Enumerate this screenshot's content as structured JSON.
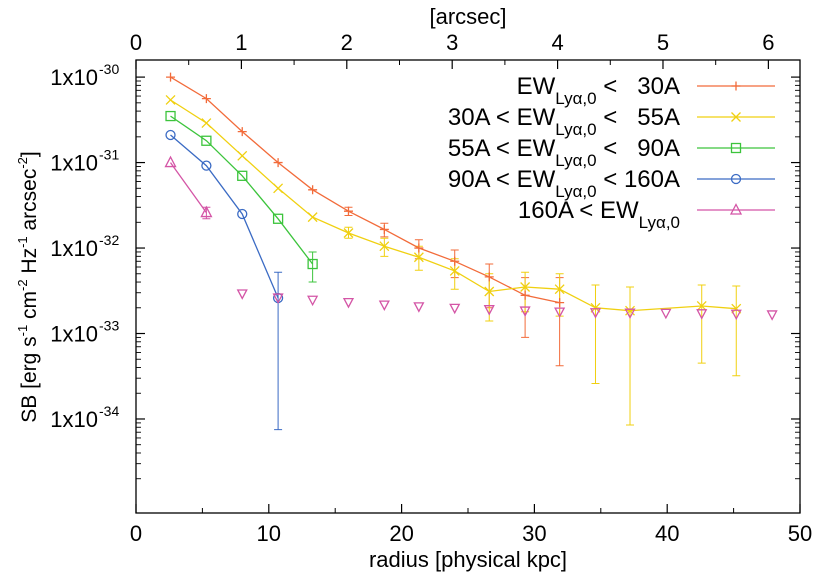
{
  "chart_data": {
    "type": "line",
    "xlabel": "radius [physical kpc]",
    "x2label": "[arcsec]",
    "ylabel_parts": {
      "a": "SB [erg s",
      "a_sup": "-1",
      "b": " cm",
      "b_sup": "-2",
      "c": " Hz",
      "c_sup": "-1",
      "d": " arcsec",
      "d_sup": "-2",
      "e": "]"
    },
    "xlim": [
      0,
      50
    ],
    "x2lim": [
      0,
      6.3
    ],
    "ylim_log10": [
      -35.1,
      -29.8
    ],
    "y_log_scale": true,
    "xticks": [
      "0",
      "10",
      "20",
      "30",
      "40",
      "50"
    ],
    "x2ticks": [
      "0",
      "1",
      "2",
      "3",
      "4",
      "5",
      "6"
    ],
    "yticks": [
      {
        "mantissa": "1x10",
        "exp": "-30",
        "log10": -30
      },
      {
        "mantissa": "1x10",
        "exp": "-31",
        "log10": -31
      },
      {
        "mantissa": "1x10",
        "exp": "-32",
        "log10": -32
      },
      {
        "mantissa": "1x10",
        "exp": "-33",
        "log10": -33
      },
      {
        "mantissa": "1x10",
        "exp": "-34",
        "log10": -34
      }
    ],
    "legend_position": "top-right",
    "series": [
      {
        "name_prefix": "",
        "name_suffix": " <   30A",
        "color": "#f26b3a",
        "marker": "plus",
        "points": [
          {
            "x": 2.6,
            "y": 1e-30
          },
          {
            "x": 5.3,
            "y": 5.6e-31
          },
          {
            "x": 8.0,
            "y": 2.3e-31
          },
          {
            "x": 10.7,
            "y": 1e-31
          },
          {
            "x": 13.3,
            "y": 4.8e-32
          },
          {
            "x": 16.0,
            "y": 2.7e-32,
            "lo": 2.4e-32,
            "hi": 3e-32
          },
          {
            "x": 18.7,
            "y": 1.65e-32,
            "lo": 1.35e-32,
            "hi": 1.95e-32
          },
          {
            "x": 21.3,
            "y": 1e-32,
            "lo": 7.5e-33,
            "hi": 1.25e-32
          },
          {
            "x": 24.0,
            "y": 7e-33,
            "lo": 4.5e-33,
            "hi": 9.5e-33
          },
          {
            "x": 26.6,
            "y": 4.6e-33,
            "lo": 2e-33,
            "hi": 6.5e-33
          },
          {
            "x": 29.3,
            "y": 2.8e-33,
            "lo": 9e-34,
            "hi": 4.5e-33
          },
          {
            "x": 31.9,
            "y": 2.3e-33,
            "lo": 4.2e-34,
            "hi": 4.5e-33
          }
        ]
      },
      {
        "name_prefix": "30A < ",
        "name_suffix": " <   55A",
        "color": "#f0d010",
        "marker": "cross",
        "points": [
          {
            "x": 2.6,
            "y": 5.4e-31
          },
          {
            "x": 5.3,
            "y": 2.9e-31
          },
          {
            "x": 8.0,
            "y": 1.2e-31
          },
          {
            "x": 10.7,
            "y": 5e-32
          },
          {
            "x": 13.3,
            "y": 2.3e-32
          },
          {
            "x": 16.0,
            "y": 1.5e-32,
            "lo": 1.3e-32,
            "hi": 1.75e-32
          },
          {
            "x": 18.7,
            "y": 1.05e-32,
            "lo": 8e-33,
            "hi": 1.3e-32
          },
          {
            "x": 21.3,
            "y": 7.8e-33,
            "lo": 5.5e-33,
            "hi": 1.05e-32
          },
          {
            "x": 24.0,
            "y": 5.4e-33,
            "lo": 3.3e-33,
            "hi": 7.5e-33
          },
          {
            "x": 26.6,
            "y": 3.1e-33,
            "lo": 1.4e-33,
            "hi": 5e-33
          },
          {
            "x": 29.3,
            "y": 3.5e-33,
            "lo": 1.8e-33,
            "hi": 5.2e-33
          },
          {
            "x": 31.9,
            "y": 3.3e-33,
            "lo": 1.6e-33,
            "hi": 5e-33
          },
          {
            "x": 34.6,
            "y": 2e-33,
            "lo": 2.6e-34,
            "hi": 3.7e-33
          },
          {
            "x": 37.2,
            "y": 1.85e-33,
            "lo": 8.5e-35,
            "hi": 3.5e-33
          },
          {
            "x": 42.6,
            "y": 2.1e-33,
            "lo": 4.5e-34,
            "hi": 3.7e-33
          },
          {
            "x": 45.2,
            "y": 1.95e-33,
            "lo": 3.2e-34,
            "hi": 3.6e-33
          }
        ]
      },
      {
        "name_prefix": "55A < ",
        "name_suffix": " <   90A",
        "color": "#3cc43c",
        "marker": "square",
        "points": [
          {
            "x": 2.6,
            "y": 3.5e-31
          },
          {
            "x": 5.3,
            "y": 1.8e-31
          },
          {
            "x": 8.0,
            "y": 7e-32
          },
          {
            "x": 10.7,
            "y": 2.2e-32
          },
          {
            "x": 13.3,
            "y": 6.5e-33,
            "lo": 4e-33,
            "hi": 9e-33
          }
        ]
      },
      {
        "name_prefix": "90A < ",
        "name_suffix": " < 160A",
        "color": "#3b6bc4",
        "marker": "circle",
        "points": [
          {
            "x": 2.6,
            "y": 2.1e-31
          },
          {
            "x": 5.3,
            "y": 9.2e-32
          },
          {
            "x": 8.0,
            "y": 2.5e-32
          },
          {
            "x": 10.7,
            "y": 2.6e-33,
            "lo": 7.5e-35,
            "hi": 5.2e-33
          }
        ]
      },
      {
        "name_prefix": "160A < ",
        "name_suffix": "",
        "color": "#d455a6",
        "marker": "triangle",
        "points": [
          {
            "x": 2.6,
            "y": 1e-31
          },
          {
            "x": 5.3,
            "y": 2.6e-32,
            "lo": 2.2e-32,
            "hi": 3e-32
          }
        ]
      }
    ],
    "legend_ew_symbol": {
      "main": "EW",
      "sub_a": "Ly",
      "sub_greek": "α",
      "sub_b": ",0"
    },
    "upper_limits": {
      "marker": "inverted-triangle",
      "color": "#d455a6",
      "points": [
        {
          "x": 8.0,
          "y": 2.9e-33
        },
        {
          "x": 10.7,
          "y": 2.6e-33
        },
        {
          "x": 13.3,
          "y": 2.45e-33
        },
        {
          "x": 16.0,
          "y": 2.3e-33
        },
        {
          "x": 18.7,
          "y": 2.15e-33
        },
        {
          "x": 21.3,
          "y": 2.05e-33
        },
        {
          "x": 24.0,
          "y": 1.97e-33
        },
        {
          "x": 26.6,
          "y": 1.9e-33
        },
        {
          "x": 29.3,
          "y": 1.83e-33
        },
        {
          "x": 31.9,
          "y": 1.78e-33
        },
        {
          "x": 34.6,
          "y": 1.75e-33
        },
        {
          "x": 37.2,
          "y": 1.73e-33
        },
        {
          "x": 39.9,
          "y": 1.72e-33
        },
        {
          "x": 42.6,
          "y": 1.7e-33
        },
        {
          "x": 45.2,
          "y": 1.68e-33
        },
        {
          "x": 47.9,
          "y": 1.65e-33
        }
      ]
    }
  }
}
